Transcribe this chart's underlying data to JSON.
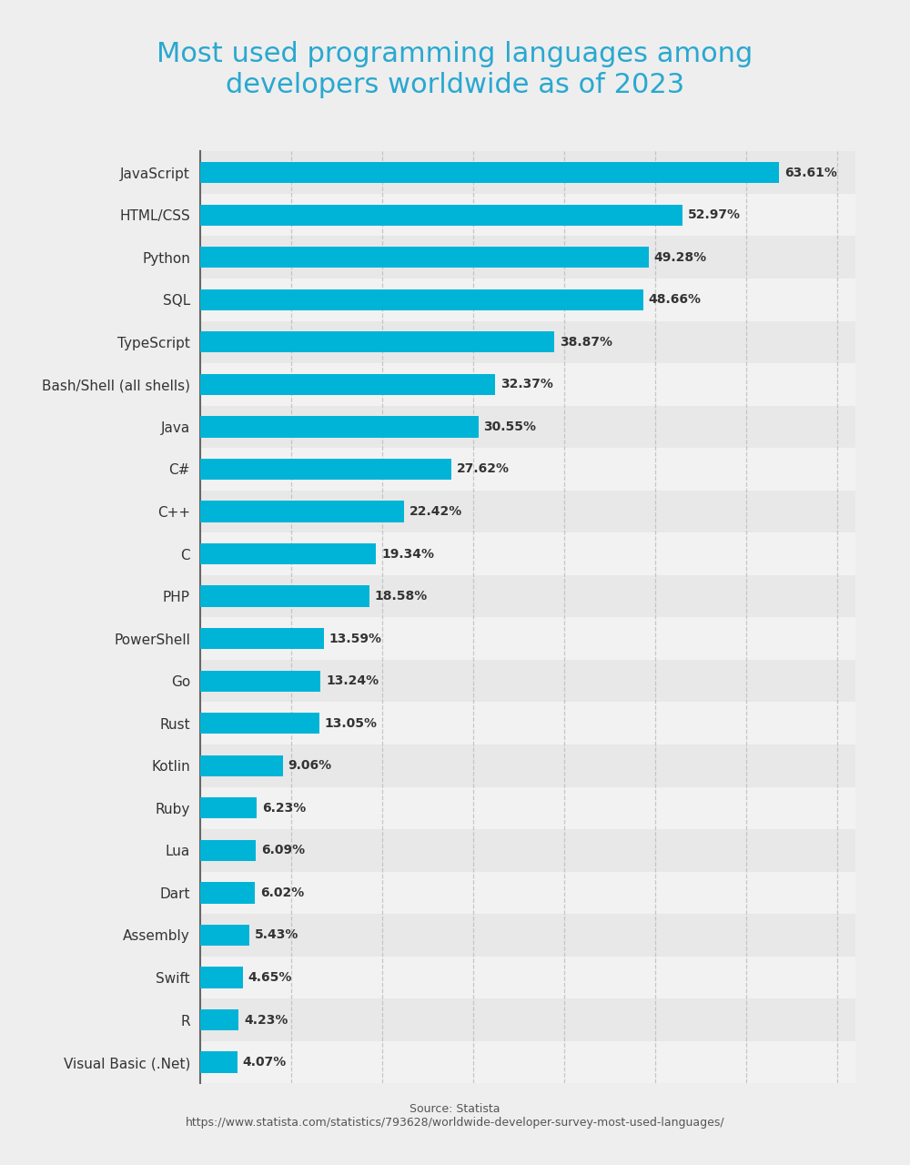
{
  "title": "Most used programming languages among\ndevelopers worldwide as of 2023",
  "title_color": "#29a8d0",
  "languages": [
    "JavaScript",
    "HTML/CSS",
    "Python",
    "SQL",
    "TypeScript",
    "Bash/Shell (all shells)",
    "Java",
    "C#",
    "C++",
    "C",
    "PHP",
    "PowerShell",
    "Go",
    "Rust",
    "Kotlin",
    "Ruby",
    "Lua",
    "Dart",
    "Assembly",
    "Swift",
    "R",
    "Visual Basic (.Net)"
  ],
  "values": [
    63.61,
    52.97,
    49.28,
    48.66,
    38.87,
    32.37,
    30.55,
    27.62,
    22.42,
    19.34,
    18.58,
    13.59,
    13.24,
    13.05,
    9.06,
    6.23,
    6.09,
    6.02,
    5.43,
    4.65,
    4.23,
    4.07
  ],
  "bar_color": "#00b4d8",
  "label_color": "#333333",
  "value_color": "#333333",
  "bg_color": "#eeeeee",
  "row_color_odd": "#e8e8e8",
  "row_color_even": "#f2f2f2",
  "grid_color": "#bbbbbb",
  "source_text": "Source: Statista\nhttps://www.statista.com/statistics/793628/worldwide-developer-survey-most-used-languages/",
  "source_color": "#555555",
  "xlim": [
    0,
    72
  ],
  "xticks": [
    0,
    10,
    20,
    30,
    40,
    50,
    60,
    70
  ]
}
